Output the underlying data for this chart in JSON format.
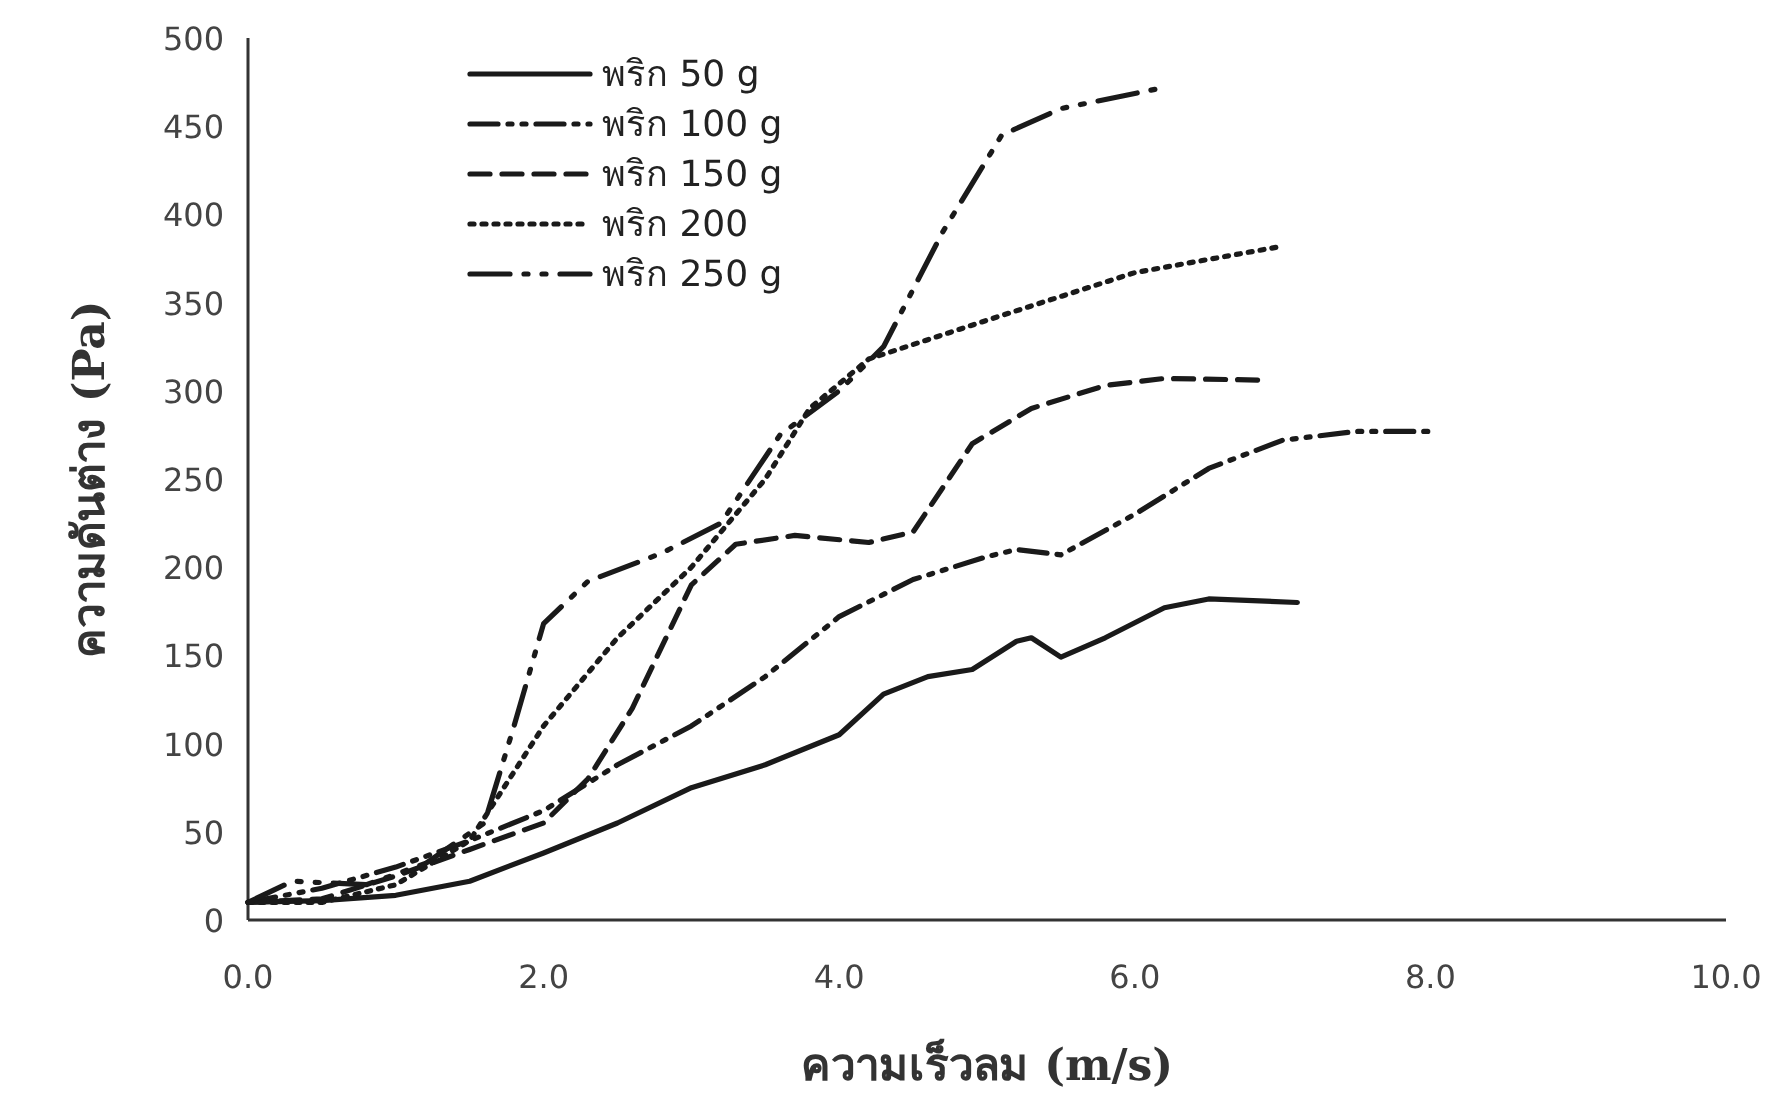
{
  "chart_data": {
    "type": "line",
    "xlabel": "ความเร็วลม (m/s)",
    "ylabel": "ความดันต่าง (Pa)",
    "xlim": [
      0,
      10
    ],
    "ylim": [
      0,
      500
    ],
    "xticks": [
      {
        "value": 0,
        "label": "0.0"
      },
      {
        "value": 2,
        "label": "2.0"
      },
      {
        "value": 4,
        "label": "4.0"
      },
      {
        "value": 6,
        "label": "6.0"
      },
      {
        "value": 8,
        "label": "8.0"
      },
      {
        "value": 10,
        "label": "10.0"
      }
    ],
    "yticks": [
      0,
      50,
      100,
      150,
      200,
      250,
      300,
      350,
      400,
      450,
      500
    ],
    "grid": false,
    "legend": "top left",
    "series": [
      {
        "name": "พริก 50 g",
        "color": "#1a1a1a",
        "line_style": "solid",
        "x": [
          0,
          0.5,
          1,
          1.5,
          2,
          2.5,
          3,
          3.5,
          4,
          4.3,
          4.6,
          4.9,
          5.2,
          5.3,
          5.5,
          5.8,
          6.2,
          6.5,
          6.8,
          7.1
        ],
        "values": [
          10,
          11,
          14,
          22,
          38,
          55,
          75,
          88,
          105,
          128,
          138,
          142,
          158,
          160,
          149,
          160,
          177,
          182,
          181,
          180
        ]
      },
      {
        "name": "พริก 100 g",
        "color": "#1a1a1a",
        "line_style": "dashdotdot",
        "x": [
          0,
          0.5,
          1,
          1.5,
          2,
          2.5,
          3,
          3.5,
          4,
          4.5,
          5,
          5.2,
          5.5,
          6,
          6.5,
          7,
          7.5,
          8
        ],
        "values": [
          10,
          18,
          30,
          45,
          62,
          88,
          110,
          138,
          172,
          193,
          206,
          210,
          207,
          230,
          256,
          272,
          277,
          277
        ]
      },
      {
        "name": "พริก 150 g",
        "color": "#1a1a1a",
        "line_style": "dashed",
        "x": [
          0,
          0.5,
          1,
          1.5,
          2,
          2.3,
          2.6,
          3,
          3.3,
          3.7,
          4.2,
          4.5,
          4.9,
          5.3,
          5.8,
          6.2,
          6.9
        ],
        "values": [
          10,
          12,
          25,
          40,
          55,
          80,
          120,
          190,
          213,
          218,
          214,
          220,
          270,
          290,
          303,
          307,
          306
        ]
      },
      {
        "name": "พริก 200",
        "color": "#1a1a1a",
        "line_style": "dotted",
        "x": [
          0,
          0.5,
          1,
          1.5,
          2,
          2.5,
          3,
          3.5,
          3.8,
          4.2,
          5,
          6,
          7
        ],
        "values": [
          10,
          10,
          20,
          45,
          110,
          160,
          200,
          250,
          290,
          318,
          340,
          367,
          382
        ]
      },
      {
        "name": "พริก 250 g",
        "color": "#1a1a1a",
        "line_style": "longdashdotdot",
        "x": [
          0,
          0.3,
          0.8,
          1.2,
          1.6,
          1.8,
          2,
          2.3,
          2.8,
          3.2,
          3.6,
          4,
          4.3,
          4.7,
          5.1,
          5.5,
          6.2
        ],
        "values": [
          10,
          22,
          20,
          32,
          55,
          110,
          168,
          192,
          208,
          225,
          275,
          300,
          325,
          390,
          445,
          460,
          472
        ]
      }
    ]
  }
}
